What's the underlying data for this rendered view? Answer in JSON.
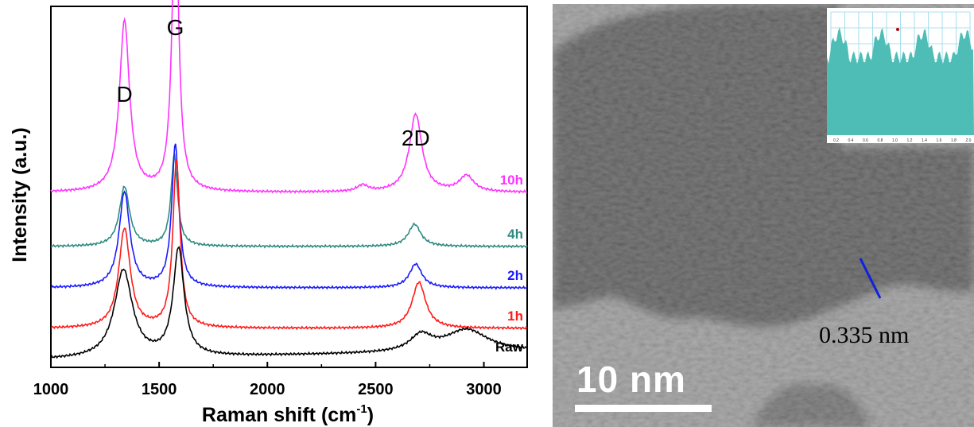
{
  "chart_data": [
    {
      "type": "line",
      "xlabel": "Raman shift (cm",
      "xlabel_sup": "-1",
      "xlabel_end": ")",
      "ylabel": "Intensity (a.u.)",
      "xlim": [
        1000,
        3200
      ],
      "xticks": [
        "1000",
        "1500",
        "2000",
        "2500",
        "3000"
      ],
      "peak_labels": [
        {
          "text": "D",
          "x": 1340
        },
        {
          "text": "G",
          "x": 1575
        },
        {
          "text": "2D",
          "x": 2685
        }
      ],
      "series": [
        {
          "name": "10h",
          "color": "#ff33ff",
          "baseline": 0.0,
          "peaks": [
            {
              "x": 1340,
              "height": 215,
              "width": 28
            },
            {
              "x": 1575,
              "height": 375,
              "width": 18
            },
            {
              "x": 2440,
              "height": 8,
              "width": 30
            },
            {
              "x": 2685,
              "height": 98,
              "width": 35
            },
            {
              "x": 2920,
              "height": 20,
              "width": 40
            }
          ]
        },
        {
          "name": "4h",
          "color": "#2e8b80",
          "baseline": 0.0,
          "peaks": [
            {
              "x": 1340,
              "height": 75,
              "width": 28
            },
            {
              "x": 1570,
              "height": 115,
              "width": 18
            },
            {
              "x": 2680,
              "height": 28,
              "width": 35
            }
          ]
        },
        {
          "name": "2h",
          "color": "#1a1aff",
          "baseline": 0.0,
          "peaks": [
            {
              "x": 1340,
              "height": 120,
              "width": 30
            },
            {
              "x": 1575,
              "height": 180,
              "width": 20
            },
            {
              "x": 2685,
              "height": 30,
              "width": 35
            }
          ]
        },
        {
          "name": "1h",
          "color": "#ff1a1a",
          "baseline": 0.0,
          "peaks": [
            {
              "x": 1340,
              "height": 125,
              "width": 32
            },
            {
              "x": 1580,
              "height": 210,
              "width": 20
            },
            {
              "x": 2700,
              "height": 58,
              "width": 38
            }
          ]
        },
        {
          "name": "Raw",
          "color": "#000000",
          "baseline": 0.0,
          "peaks": [
            {
              "x": 1335,
              "height": 110,
              "width": 50
            },
            {
              "x": 1590,
              "height": 135,
              "width": 30
            },
            {
              "x": 2710,
              "height": 20,
              "width": 60
            },
            {
              "x": 2920,
              "height": 28,
              "width": 120
            }
          ]
        }
      ]
    }
  ],
  "tem_image": {
    "spacing_label": "0.335 nm",
    "scale_label": "10 nm",
    "inset_xticks": [
      "0.2",
      "0.4",
      "0.6",
      "0.8",
      "1.0",
      "1.2",
      "1.4",
      "1.6",
      "1.8",
      "2.0"
    ]
  }
}
